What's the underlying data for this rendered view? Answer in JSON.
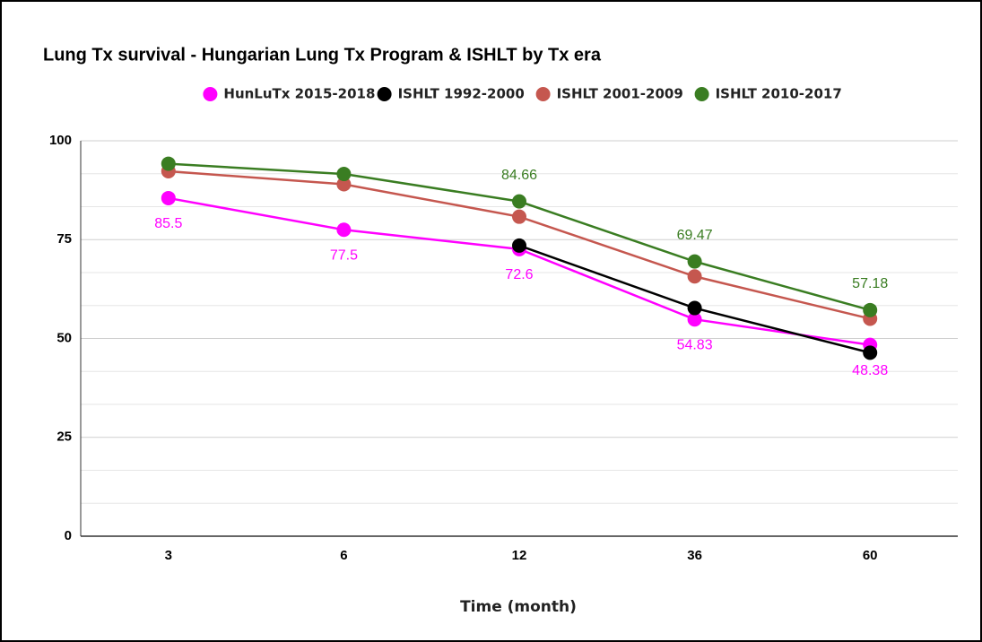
{
  "chart_data": {
    "type": "line",
    "title": "Lung Tx survival - Hungarian Lung Tx Program & ISHLT by Tx era",
    "x_label": "Time (month)",
    "categories": [
      "3",
      "6",
      "12",
      "36",
      "60"
    ],
    "series": [
      {
        "name": "HunLuTx 2015-2018",
        "color": "#ff00ff",
        "values": [
          85.5,
          77.5,
          72.6,
          54.83,
          48.38
        ],
        "value_labels": [
          "85.5",
          "77.5",
          "72.6",
          "54.83",
          "48.38"
        ],
        "label_position": "below"
      },
      {
        "name": "ISHLT 1992-2000",
        "color": "#000000",
        "values": [
          null,
          null,
          73.5,
          57.7,
          46.4
        ]
      },
      {
        "name": "ISHLT 2001-2009",
        "color": "#c5574f",
        "values": [
          92.3,
          89.0,
          80.8,
          65.7,
          55.0
        ]
      },
      {
        "name": "ISHLT 2010-2017",
        "color": "#3a7d22",
        "values": [
          94.2,
          91.6,
          84.66,
          69.47,
          57.18
        ],
        "value_labels": [
          null,
          null,
          "84.66",
          "69.47",
          "57.18"
        ],
        "label_position": "above"
      }
    ],
    "ylim": [
      0,
      100
    ],
    "yticks": [
      0,
      25,
      50,
      75,
      100
    ],
    "grid": true,
    "minor_grid_per_major": 3,
    "legend": "top"
  }
}
